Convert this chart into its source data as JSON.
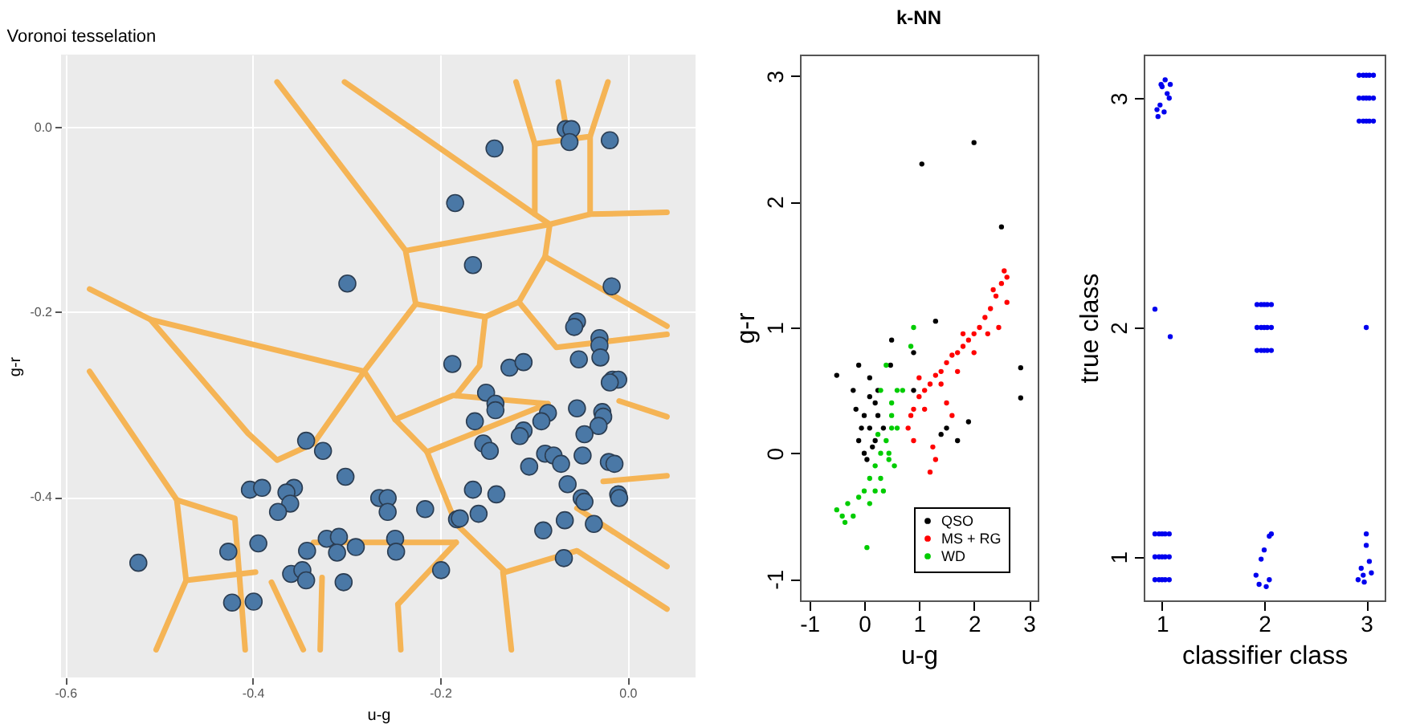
{
  "chart_data": [
    {
      "type": "scatter",
      "title": "Voronoi tesselation",
      "xlabel": "u-g",
      "ylabel": "g-r",
      "xlim": [
        -0.6045,
        0.0725
      ],
      "ylim": [
        -0.595,
        0.0786
      ],
      "xticks": [
        -0.6,
        -0.4,
        -0.2,
        {
          "value": 0,
          "label": "0.0"
        }
      ],
      "yticks": [
        {
          "value": 0,
          "label": "0.0"
        },
        -0.2,
        -0.4
      ],
      "grid": true,
      "marker": "circle",
      "series": [
        {
          "type": "line",
          "marker": "none",
          "color": "#f5b455",
          "x": [
            -0.374,
            -0.237,
            -0.226,
            -0.281,
            -0.335,
            null,
            -0.302,
            -0.099,
            null,
            -0.234,
            -0.083,
            null,
            -0.119,
            -0.099,
            -0.099,
            -0.083,
            -0.04,
            0.042,
            null,
            -0.099,
            -0.04,
            -0.021,
            null,
            -0.074,
            -0.064,
            null,
            -0.04,
            -0.04,
            null,
            -0.083,
            -0.088,
            -0.116,
            -0.152,
            -0.226,
            null,
            -0.088,
            0.042,
            null,
            -0.574,
            -0.509,
            -0.281,
            null,
            -0.509,
            -0.405,
            -0.374,
            -0.335,
            null,
            -0.574,
            -0.481,
            -0.471,
            -0.503,
            null,
            -0.481,
            -0.419,
            -0.408,
            null,
            -0.471,
            -0.397,
            null,
            -0.281,
            -0.248,
            -0.214,
            null,
            -0.248,
            -0.186,
            -0.085,
            null,
            -0.152,
            -0.158,
            -0.183,
            null,
            -0.116,
            -0.076,
            0.042,
            null,
            -0.133,
            -0.124,
            null,
            -0.245,
            -0.242,
            null,
            -0.326,
            -0.328,
            null,
            -0.38,
            -0.346,
            null,
            0.042,
            -0.054,
            null,
            0.042,
            -0.054,
            -0.13,
            -0.183,
            null,
            0.042,
            -0.026,
            null,
            0.042,
            -0.009,
            null,
            -0.214,
            -0.183,
            null,
            -0.335,
            -0.183,
            null,
            -0.214,
            -0.085,
            null,
            -0.245,
            -0.183
          ],
          "values": [
            0.049,
            -0.133,
            -0.191,
            -0.264,
            -0.342,
            null,
            0.049,
            -0.094,
            null,
            -0.133,
            -0.105,
            null,
            0.049,
            -0.018,
            -0.094,
            -0.105,
            -0.094,
            -0.092,
            null,
            -0.018,
            -0.01,
            0.049,
            null,
            0.049,
            -0.01,
            null,
            -0.01,
            -0.094,
            null,
            -0.105,
            -0.14,
            -0.189,
            -0.205,
            -0.191,
            null,
            -0.14,
            -0.215,
            null,
            -0.175,
            -0.208,
            -0.264,
            null,
            -0.208,
            -0.331,
            -0.36,
            -0.342,
            null,
            -0.264,
            -0.403,
            -0.49,
            -0.565,
            null,
            -0.403,
            -0.423,
            -0.565,
            null,
            -0.49,
            -0.481,
            null,
            -0.264,
            -0.316,
            -0.351,
            null,
            -0.316,
            -0.29,
            -0.299,
            null,
            -0.205,
            -0.258,
            -0.29,
            null,
            -0.189,
            -0.238,
            -0.224,
            null,
            -0.481,
            -0.565,
            null,
            -0.516,
            -0.565,
            null,
            -0.487,
            -0.565,
            null,
            -0.492,
            -0.565,
            null,
            -0.475,
            -0.412,
            null,
            -0.521,
            -0.458,
            -0.481,
            -0.429,
            null,
            -0.377,
            -0.383,
            null,
            -0.313,
            -0.296,
            null,
            -0.351,
            -0.429,
            null,
            -0.449,
            -0.449,
            null,
            -0.351,
            -0.299,
            null,
            -0.516,
            -0.449
          ]
        },
        {
          "type": "scatter",
          "color": "#4a78a6",
          "x": [
            -0.066,
            -0.06,
            -0.062,
            -0.019,
            -0.142,
            -0.184,
            -0.165,
            -0.299,
            -0.017,
            -0.054,
            -0.057,
            -0.03,
            -0.03,
            -0.029,
            -0.052,
            -0.187,
            -0.126,
            -0.111,
            -0.016,
            -0.01,
            -0.019,
            -0.151,
            -0.141,
            -0.141,
            -0.054,
            -0.027,
            -0.026,
            -0.031,
            -0.085,
            -0.092,
            -0.163,
            -0.111,
            -0.115,
            -0.046,
            -0.154,
            -0.147,
            -0.088,
            -0.079,
            -0.071,
            -0.048,
            -0.105,
            -0.02,
            -0.014,
            -0.343,
            -0.325,
            -0.301,
            -0.064,
            -0.165,
            -0.14,
            -0.403,
            -0.39,
            -0.356,
            -0.364,
            -0.36,
            -0.373,
            -0.265,
            -0.256,
            -0.256,
            -0.216,
            -0.182,
            -0.179,
            -0.159,
            -0.049,
            -0.046,
            -0.01,
            -0.009,
            -0.09,
            -0.067,
            -0.036,
            -0.426,
            -0.394,
            -0.342,
            -0.321,
            -0.308,
            -0.31,
            -0.29,
            -0.248,
            -0.247,
            -0.068,
            -0.199,
            -0.359,
            -0.347,
            -0.343,
            -0.303,
            -0.522,
            -0.422,
            -0.399
          ],
          "values": [
            -0.002,
            -0.002,
            -0.016,
            -0.014,
            -0.023,
            -0.082,
            -0.149,
            -0.169,
            -0.172,
            -0.21,
            -0.216,
            -0.228,
            -0.236,
            -0.249,
            -0.251,
            -0.256,
            -0.26,
            -0.254,
            -0.273,
            -0.273,
            -0.276,
            -0.287,
            -0.299,
            -0.306,
            -0.304,
            -0.308,
            -0.313,
            -0.323,
            -0.309,
            -0.318,
            -0.318,
            -0.328,
            -0.334,
            -0.332,
            -0.342,
            -0.35,
            -0.353,
            -0.355,
            -0.364,
            -0.355,
            -0.367,
            -0.362,
            -0.364,
            -0.339,
            -0.35,
            -0.378,
            -0.386,
            -0.392,
            -0.397,
            -0.392,
            -0.39,
            -0.39,
            -0.395,
            -0.407,
            -0.416,
            -0.401,
            -0.401,
            -0.416,
            -0.413,
            -0.424,
            -0.423,
            -0.418,
            -0.401,
            -0.405,
            -0.397,
            -0.401,
            -0.436,
            -0.425,
            -0.429,
            -0.459,
            -0.45,
            -0.458,
            -0.445,
            -0.443,
            -0.46,
            -0.454,
            -0.445,
            -0.459,
            -0.466,
            -0.479,
            -0.483,
            -0.479,
            -0.49,
            -0.492,
            -0.471,
            -0.514,
            -0.513
          ]
        }
      ]
    },
    {
      "type": "scatter",
      "title": "k-NN",
      "xlabel": "u-g",
      "ylabel": "g-r",
      "xlim": [
        -1.17,
        3.16
      ],
      "ylim": [
        -1.17,
        3.17
      ],
      "xticks": [
        -1,
        0,
        1,
        2,
        3
      ],
      "yticks": [
        -1,
        0,
        1,
        2,
        3
      ],
      "legend": "bottom right",
      "marker": "circle",
      "series": [
        {
          "name": "QSO",
          "color": "#000000",
          "x": [
            1.05,
            2.0,
            2.5,
            2.85,
            2.85,
            1.3,
            -0.5,
            -0.1,
            0.5,
            1.9,
            1.7,
            1.5,
            1.4,
            -0.2,
            0,
            0.1,
            -0.1,
            0.2,
            0.25,
            0.1,
            0,
            0.2,
            0.35,
            -0.15,
            0.1,
            0.48,
            0.9,
            0.9,
            0.05,
            0.25,
            -0.05,
            0.15
          ],
          "values": [
            2.3,
            2.47,
            1.8,
            0.68,
            0.44,
            1.05,
            0.62,
            0.7,
            0.9,
            0.25,
            0.1,
            0.2,
            0.15,
            0.5,
            0.3,
            0.2,
            0.1,
            0.4,
            0.5,
            0.45,
            0,
            0.1,
            0.2,
            0.35,
            0.6,
            0.7,
            0.8,
            0.5,
            -0.05,
            0.3,
            0.2,
            0.05
          ]
        },
        {
          "name": "MS + RG",
          "color": "#ff0000",
          "x": [
            0.8,
            0.9,
            1.0,
            1.1,
            1.2,
            1.3,
            1.4,
            1.5,
            1.6,
            1.7,
            1.8,
            1.9,
            2.0,
            2.1,
            2.2,
            2.3,
            2.4,
            2.5,
            2.55,
            2.6,
            2.45,
            2.25,
            2.0,
            1.7,
            1.4,
            1.1,
            0.9,
            1.2,
            1.3,
            1.25,
            1.0,
            0.85,
            1.8,
            2.35,
            2.6,
            1.5,
            1.6
          ],
          "values": [
            0.2,
            0.35,
            0.45,
            0.5,
            0.55,
            0.62,
            0.65,
            0.72,
            0.78,
            0.8,
            0.85,
            0.9,
            0.95,
            1.0,
            1.08,
            1.15,
            1.25,
            1.35,
            1.45,
            1.2,
            1.0,
            0.95,
            0.8,
            0.65,
            0.55,
            0.35,
            0.1,
            -0.15,
            -0.05,
            0.05,
            0.6,
            0.3,
            0.95,
            1.3,
            1.4,
            0.4,
            0.3
          ]
        },
        {
          "name": "WD",
          "color": "#00cc00",
          "x": [
            -0.5,
            -0.4,
            -0.3,
            -0.2,
            -0.35,
            0,
            0.1,
            0.2,
            0.3,
            0.4,
            0.5,
            0.45,
            0.3,
            0.2,
            0.5,
            0.55,
            0.6,
            0.7,
            0.9,
            0.85,
            0.4,
            0.3,
            0.5,
            0.1,
            0.05,
            0.35,
            0.25,
            0.6,
            0.45,
            -0.1
          ],
          "values": [
            -0.45,
            -0.5,
            -0.4,
            -0.5,
            -0.55,
            -0.3,
            -0.2,
            -0.1,
            0,
            0.1,
            0.2,
            0,
            -0.2,
            -0.3,
            0.3,
            -0.1,
            0.5,
            0.5,
            1.0,
            0.85,
            0.7,
            0.5,
            0.4,
            -0.4,
            -0.75,
            -0.3,
            0.15,
            0.2,
            -0.05,
            -0.35
          ]
        }
      ]
    },
    {
      "type": "scatter",
      "xlabel": "classifier class",
      "ylabel": "true class",
      "xlim": [
        0.82,
        3.18
      ],
      "ylim": [
        0.81,
        3.19
      ],
      "xticks": [
        1,
        2,
        3
      ],
      "yticks": [
        1,
        2,
        3
      ],
      "marker": "circle",
      "series": [
        {
          "color": "#0000ee",
          "x": [
            0.93,
            0.97,
            1.0,
            1.03,
            1.07,
            0.93,
            0.97,
            1.0,
            1.03,
            1.07,
            0.93,
            0.97,
            1.0,
            1.03,
            1.07,
            1.93,
            1.97,
            2.0,
            2.03,
            2.07,
            1.93,
            1.97,
            2.0,
            2.03,
            2.07,
            1.93,
            1.97,
            2.0,
            2.03,
            2.07,
            2.93,
            2.97,
            3.0,
            3.03,
            3.07,
            2.93,
            2.97,
            3.0,
            3.03,
            3.07,
            2.93,
            2.97,
            3.0,
            3.03,
            3.07,
            0.95,
            1.0,
            1.05,
            0.98,
            1.03,
            1.07,
            0.96,
            1.02,
            1.08,
            0.99,
            0.93,
            1.08,
            3.0,
            1.92,
            1.95,
            2.05,
            2.02,
            2.0,
            2.07,
            2.05,
            1.97,
            2.95,
            3.0,
            3.03,
            2.97,
            3.05,
            2.92,
            3.0,
            2.98
          ],
          "values": [
            0.9,
            0.9,
            0.9,
            0.9,
            0.9,
            1.0,
            1.0,
            1.0,
            1.0,
            1.0,
            1.1,
            1.1,
            1.1,
            1.1,
            1.1,
            1.9,
            1.9,
            1.9,
            1.9,
            1.9,
            2.0,
            2.0,
            2.0,
            2.0,
            2.0,
            2.1,
            2.1,
            2.1,
            2.1,
            2.1,
            2.9,
            2.9,
            2.9,
            2.9,
            2.9,
            3.0,
            3.0,
            3.0,
            3.0,
            3.0,
            3.1,
            3.1,
            3.1,
            3.1,
            3.1,
            2.95,
            3.05,
            3.02,
            2.97,
            3.08,
            3.0,
            2.92,
            2.94,
            3.06,
            3.06,
            2.08,
            1.96,
            2.0,
            0.92,
            0.88,
            0.9,
            0.87,
            1.03,
            1.1,
            1.09,
            0.99,
            0.95,
            1.05,
            0.98,
            0.92,
            0.93,
            0.9,
            1.1,
            0.89
          ]
        }
      ]
    }
  ]
}
